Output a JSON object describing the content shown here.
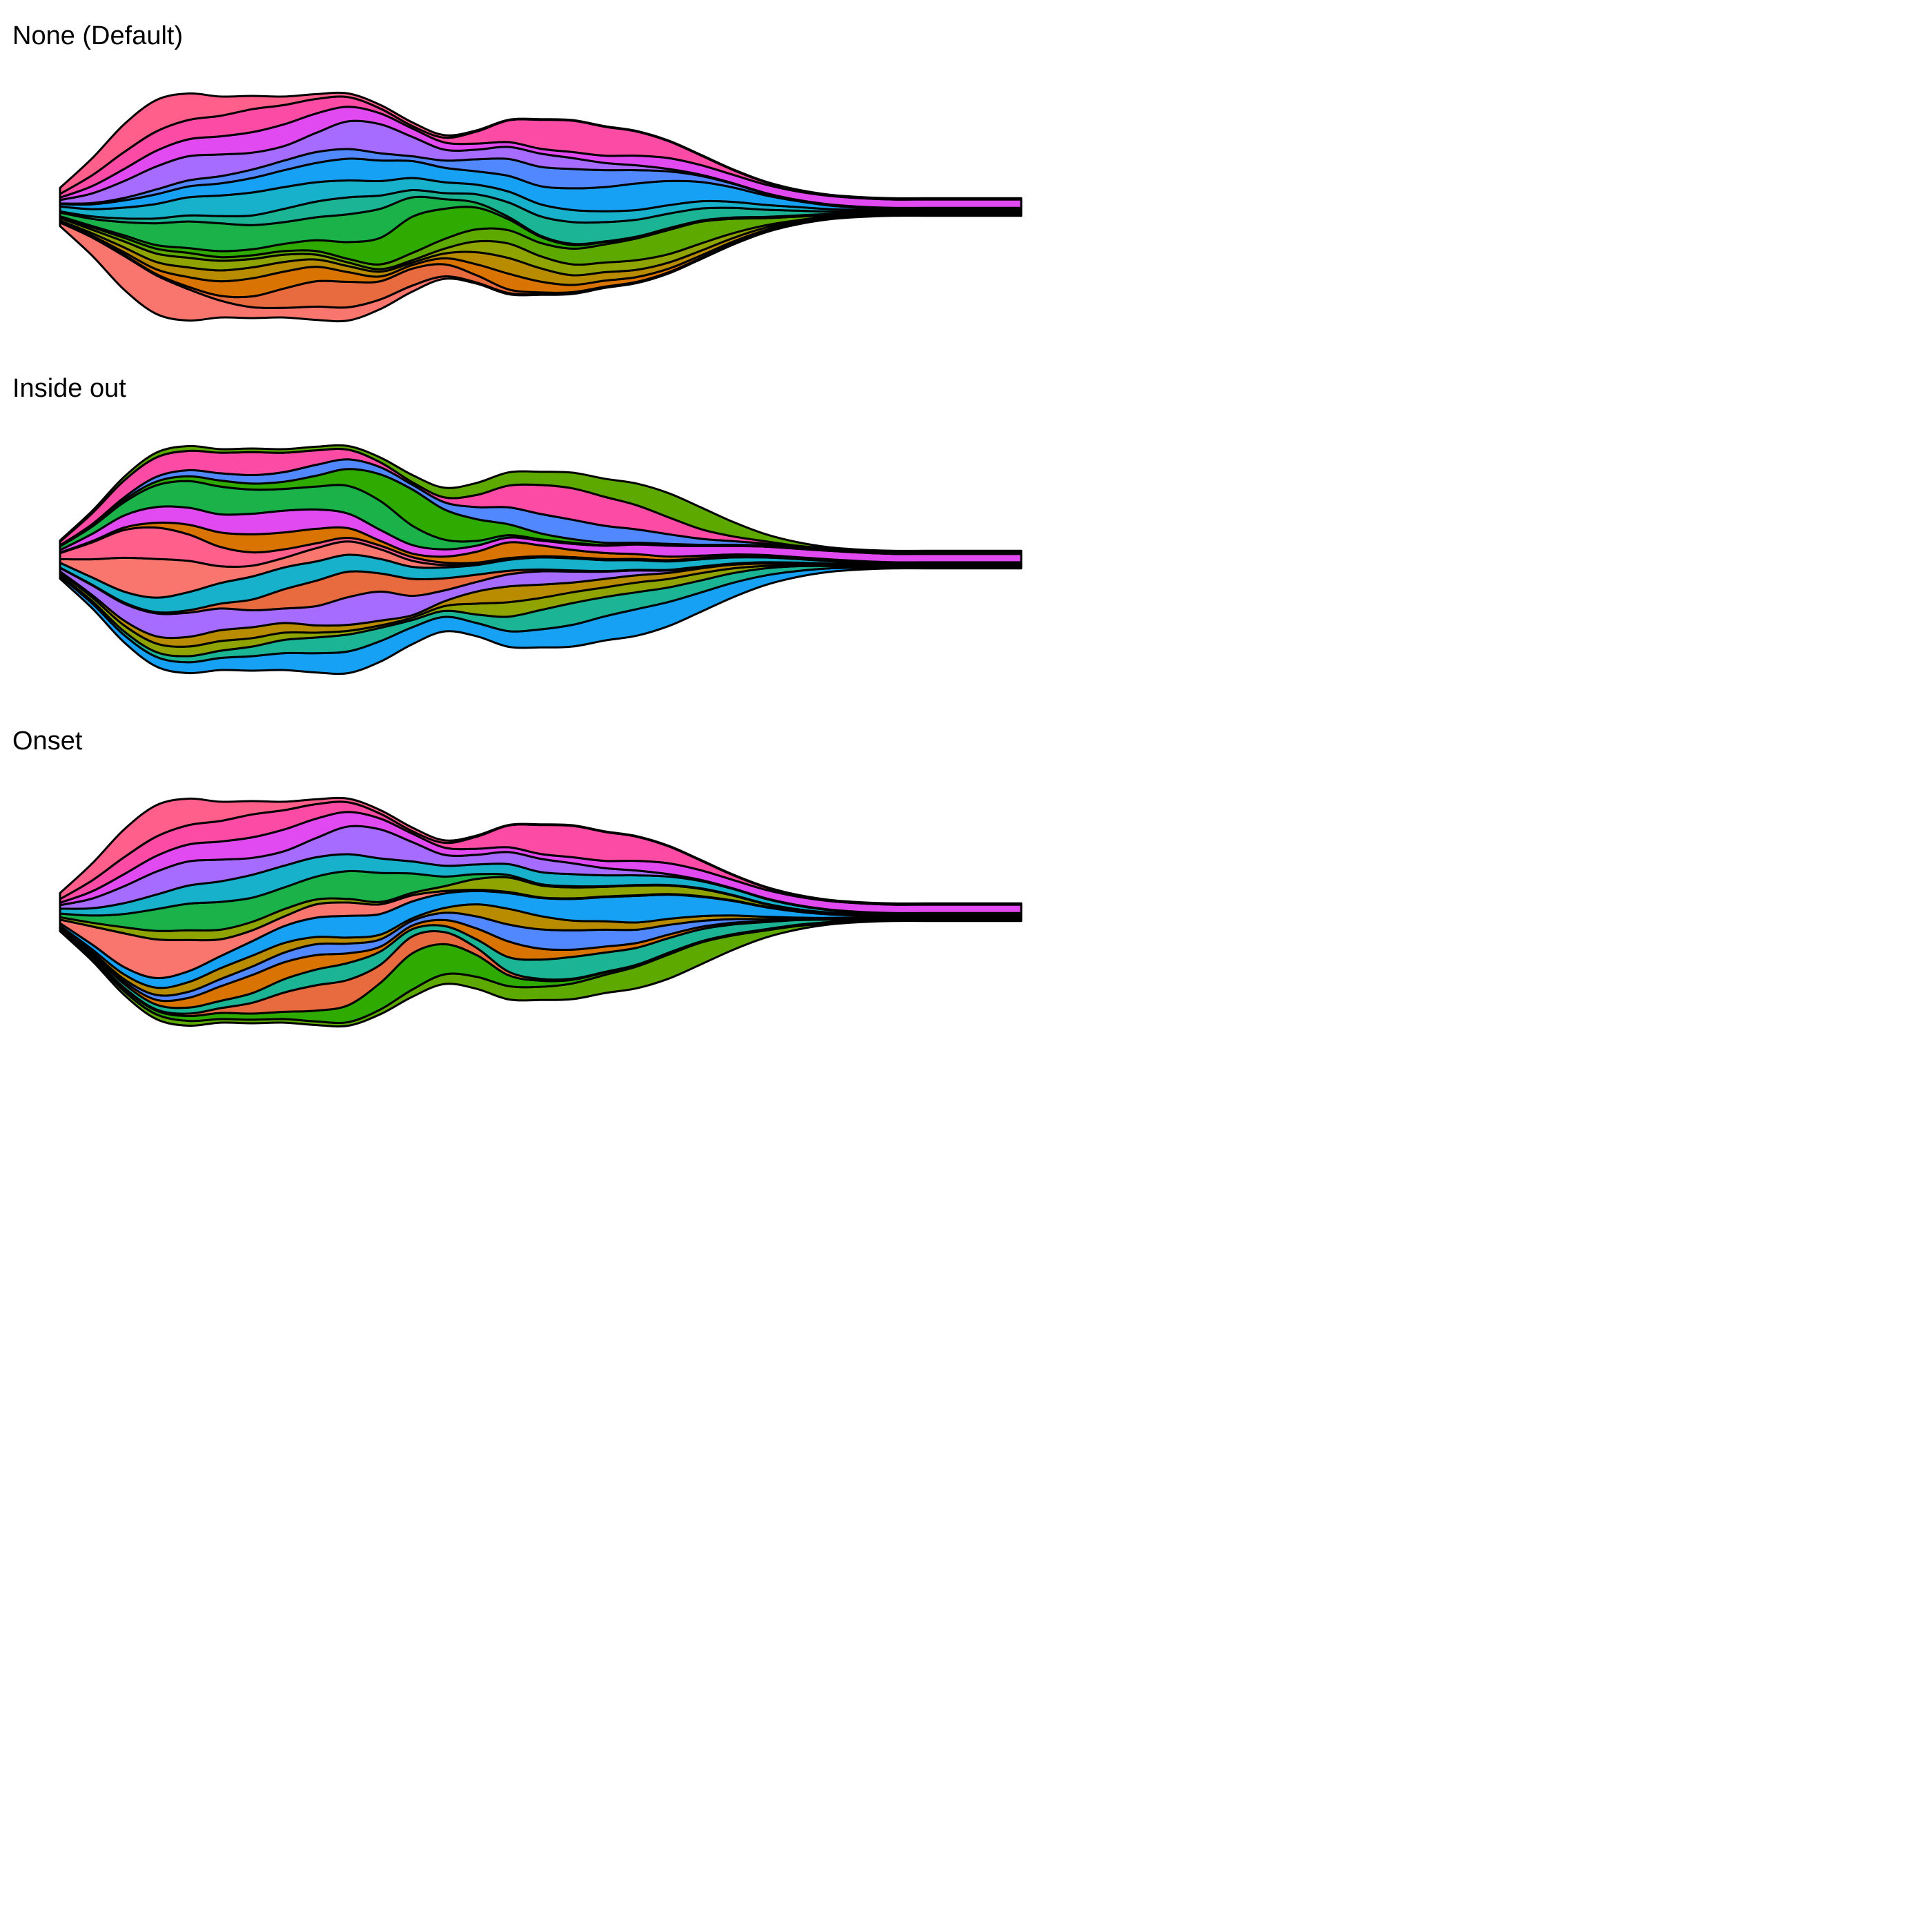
{
  "chart_data": [
    {
      "type": "area",
      "subtype": "streamgraph",
      "title": "None (Default)",
      "ordering": "none",
      "x": [
        0,
        1,
        2,
        3,
        4,
        5,
        6,
        7,
        8,
        9,
        10,
        11,
        12,
        13,
        14,
        15,
        16,
        17,
        18,
        19,
        20,
        21,
        22,
        23,
        24,
        25,
        26,
        27,
        28,
        29,
        30
      ],
      "series": [
        {
          "color": "#f8766d",
          "values": [
            0.3,
            1.5,
            2.8,
            3.2,
            2.6,
            1.4,
            0.9,
            0.8,
            1.1,
            1.1,
            0.8,
            0.5,
            0.2,
            0.1,
            0.1,
            0.05,
            0.05,
            0.05,
            0.05,
            0.05,
            0.05,
            0.05,
            0.05,
            0.05,
            0.05,
            0.05,
            0.05,
            0.05,
            0.05,
            0.05,
            0.05
          ]
        },
        {
          "color": "#e76b3e",
          "values": [
            0.02,
            0.05,
            0.1,
            0.1,
            0.2,
            0.4,
            0.9,
            1.6,
            2.1,
            2.1,
            1.5,
            1.4,
            1.0,
            0.6,
            0.3,
            0.15,
            0.1,
            0.05,
            0.05,
            0.05,
            0.05,
            0.05,
            0.05,
            0.05,
            0.05,
            0.05,
            0.05,
            0.05,
            0.05,
            0.05,
            0.05
          ]
        },
        {
          "color": "#d97402",
          "values": [
            0.05,
            0.1,
            0.2,
            0.4,
            0.8,
            1.2,
            1.5,
            1.4,
            1.2,
            0.8,
            0.4,
            0.3,
            0.5,
            0.9,
            1.3,
            0.9,
            0.6,
            0.5,
            0.4,
            0.3,
            0.2,
            0.15,
            0.1,
            0.05,
            0.05,
            0.05,
            0.05,
            0.05,
            0.05,
            0.05,
            0.05
          ]
        },
        {
          "color": "#b98c00",
          "values": [
            0.1,
            0.2,
            0.4,
            0.6,
            0.8,
            0.9,
            0.9,
            0.8,
            0.6,
            0.5,
            0.4,
            0.2,
            0.4,
            1.0,
            1.3,
            1.1,
            0.8,
            0.7,
            0.6,
            0.5,
            0.4,
            0.3,
            0.2,
            0.1,
            0.05,
            0.05,
            0.05,
            0.05,
            0.05,
            0.05,
            0.05
          ]
        },
        {
          "color": "#8fa400",
          "values": [
            0.2,
            0.3,
            0.5,
            0.7,
            0.8,
            0.8,
            0.7,
            0.6,
            0.4,
            0.3,
            0.2,
            0.2,
            0.4,
            0.9,
            1.2,
            1.0,
            0.9,
            0.8,
            0.8,
            0.7,
            0.6,
            0.4,
            0.2,
            0.1,
            0.05,
            0.05,
            0.05,
            0.05,
            0.05,
            0.05,
            0.05
          ]
        },
        {
          "color": "#5ea900",
          "values": [
            0.1,
            0.2,
            0.3,
            0.4,
            0.4,
            0.3,
            0.3,
            0.3,
            0.3,
            0.3,
            0.4,
            0.6,
            0.8,
            1.0,
            1.1,
            1.1,
            1.3,
            1.5,
            1.8,
            2.0,
            1.8,
            1.2,
            0.6,
            0.3,
            0.1,
            0.05,
            0.05,
            0.05,
            0.05,
            0.05,
            0.05
          ]
        },
        {
          "color": "#2eaa00",
          "values": [
            0.05,
            0.1,
            0.2,
            0.3,
            0.4,
            0.5,
            0.5,
            0.6,
            0.9,
            1.4,
            2.2,
            3.0,
            2.5,
            1.8,
            0.9,
            0.5,
            0.3,
            0.2,
            0.1,
            0.1,
            0.05,
            0.05,
            0.05,
            0.05,
            0.05,
            0.05,
            0.05,
            0.05,
            0.05,
            0.05,
            0.05
          ]
        },
        {
          "color": "#1bb24a",
          "values": [
            0.3,
            0.6,
            1.1,
            1.8,
            2.2,
            2.3,
            2.0,
            1.8,
            1.9,
            2.3,
            2.4,
            1.6,
            0.8,
            0.4,
            0.2,
            0.1,
            0.1,
            0.05,
            0.05,
            0.05,
            0.05,
            0.05,
            0.05,
            0.05,
            0.05,
            0.05,
            0.05,
            0.05,
            0.05,
            0.05,
            0.05
          ]
        },
        {
          "color": "#1bb596",
          "values": [
            0.1,
            0.2,
            0.3,
            0.4,
            0.5,
            0.6,
            0.8,
            1.1,
            1.3,
            1.4,
            1.1,
            0.6,
            0.5,
            0.7,
            1.2,
            1.6,
            1.8,
            1.6,
            1.4,
            1.2,
            1.0,
            0.8,
            0.6,
            0.4,
            0.2,
            0.1,
            0.05,
            0.05,
            0.05,
            0.05,
            0.05
          ]
        },
        {
          "color": "#17b1cc",
          "values": [
            0.4,
            0.6,
            0.9,
            1.2,
            1.5,
            1.7,
            1.9,
            1.8,
            1.6,
            1.4,
            1.2,
            1.0,
            0.9,
            0.8,
            0.9,
            1.0,
            1.0,
            0.9,
            0.8,
            0.7,
            0.6,
            0.5,
            0.4,
            0.3,
            0.2,
            0.1,
            0.05,
            0.05,
            0.05,
            0.05,
            0.05
          ]
        },
        {
          "color": "#16a1f4",
          "values": [
            0.2,
            0.4,
            0.6,
            0.8,
            0.9,
            1.0,
            1.2,
            1.4,
            1.6,
            1.8,
            1.7,
            1.4,
            1.2,
            1.1,
            1.3,
            1.5,
            1.8,
            2.0,
            2.2,
            2.0,
            1.6,
            1.2,
            0.8,
            0.5,
            0.3,
            0.15,
            0.05,
            0.05,
            0.05,
            0.05,
            0.05
          ]
        },
        {
          "color": "#5188ff",
          "values": [
            0.05,
            0.1,
            0.2,
            0.4,
            0.5,
            0.6,
            0.7,
            0.8,
            0.9,
            0.8,
            0.6,
            0.4,
            0.6,
            1.0,
            1.4,
            1.6,
            1.6,
            1.4,
            1.1,
            0.8,
            0.5,
            0.3,
            0.15,
            0.05,
            0.05,
            0.05,
            0.05,
            0.05,
            0.05,
            0.05,
            0.05
          ]
        },
        {
          "color": "#a56cff",
          "values": [
            0.3,
            0.8,
            1.4,
            1.9,
            2.0,
            1.8,
            1.4,
            1.2,
            1.6,
            2.3,
            2.4,
            1.6,
            0.9,
            0.8,
            1.0,
            1.1,
            0.9,
            0.6,
            0.4,
            0.2,
            0.1,
            0.05,
            0.05,
            0.05,
            0.05,
            0.05,
            0.05,
            0.05,
            0.05,
            0.05,
            0.05
          ]
        },
        {
          "color": "#e04af0",
          "values": [
            0.2,
            0.6,
            1.0,
            1.3,
            1.4,
            1.5,
            1.7,
            1.8,
            1.6,
            1.2,
            0.9,
            0.7,
            0.6,
            0.5,
            0.4,
            0.4,
            0.5,
            0.6,
            0.8,
            0.9,
            0.8,
            0.7,
            0.7,
            0.7,
            0.7,
            0.7,
            0.7,
            0.7,
            0.7,
            0.7,
            0.7
          ]
        },
        {
          "color": "#fc4ba5",
          "values": [
            0.3,
            0.9,
            1.4,
            1.6,
            1.6,
            1.7,
            1.9,
            1.6,
            1.2,
            0.8,
            0.4,
            0.2,
            0.4,
            1.0,
            1.8,
            2.4,
            2.6,
            2.4,
            2.0,
            1.4,
            0.8,
            0.4,
            0.2,
            0.1,
            0.05,
            0.05,
            0.05,
            0.05,
            0.05,
            0.05,
            0.05
          ]
        },
        {
          "color": "#ff5f8a",
          "values": [
            0.5,
            1.4,
            2.3,
            2.6,
            2.2,
            1.6,
            1.1,
            0.7,
            0.4,
            0.3,
            0.3,
            0.3,
            0.2,
            0.1,
            0.05,
            0.05,
            0.05,
            0.05,
            0.05,
            0.05,
            0.05,
            0.05,
            0.05,
            0.05,
            0.05,
            0.05,
            0.05,
            0.05,
            0.05,
            0.05,
            0.05
          ]
        }
      ]
    },
    {
      "type": "area",
      "subtype": "streamgraph",
      "title": "Inside out",
      "ordering": "inside-out"
    },
    {
      "type": "area",
      "subtype": "streamgraph",
      "title": "Onset",
      "ordering": "onset"
    }
  ]
}
